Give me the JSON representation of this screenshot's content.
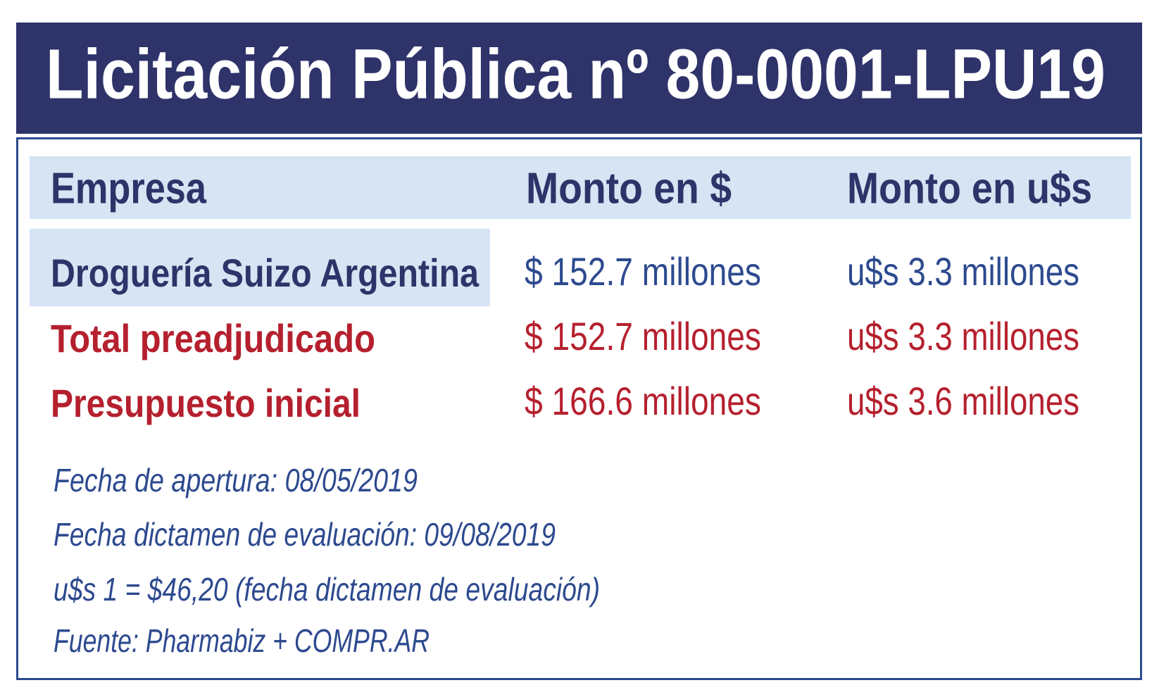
{
  "title": "Licitación Pública nº 80-0001-LPU19",
  "table": {
    "header": [
      "Empresa",
      "Monto en $",
      "Monto en u$s"
    ],
    "rows": [
      [
        "Droguería Suizo Argentina",
        "$ 152.7 millones",
        "u$s 3.3 millones"
      ],
      [
        "Total preadjudicado",
        "$ 152.7 millones",
        "u$s 3.3 millones"
      ],
      [
        "Presupuesto inicial",
        "$ 166.6 millones",
        "u$s 3.6 millones"
      ]
    ]
  },
  "notes": [
    "Fecha de apertura: 08/05/2019",
    "Fecha dictamen de evaluación: 09/08/2019",
    "u$s 1 = $46,20 (fecha dictamen de evaluación)",
    "Fuente: Pharmabiz + COMPR.AR"
  ]
}
